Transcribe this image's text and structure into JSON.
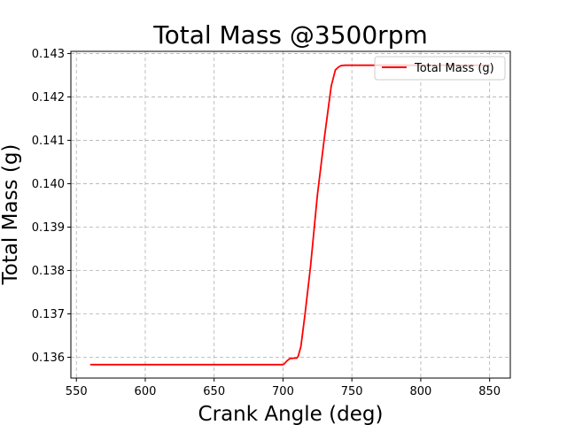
{
  "chart_data": {
    "type": "line",
    "title": "Total Mass @3500rpm",
    "xlabel": "Crank Angle (deg)",
    "ylabel": "Total Mass (g)",
    "xlim": [
      546,
      865
    ],
    "ylim": [
      0.13552,
      0.14305
    ],
    "xticks": [
      550,
      600,
      650,
      700,
      750,
      800,
      850
    ],
    "yticks": [
      0.136,
      0.137,
      0.138,
      0.139,
      0.14,
      0.141,
      0.142,
      0.143
    ],
    "xtick_labels": [
      "550",
      "600",
      "650",
      "700",
      "750",
      "800",
      "850"
    ],
    "ytick_labels": [
      "0.136",
      "0.137",
      "0.138",
      "0.139",
      "0.140",
      "0.141",
      "0.142",
      "0.143"
    ],
    "grid": true,
    "legend_position": "top-right",
    "series": [
      {
        "name": "Total Mass (g)",
        "color": "#ff0000",
        "x": [
          560,
          600,
          650,
          700,
          701,
          703,
          705,
          708,
          710,
          711,
          713,
          716,
          720,
          725,
          730,
          735,
          738,
          740,
          742,
          745,
          750,
          760,
          780,
          850
        ],
        "y": [
          0.13583,
          0.13583,
          0.13583,
          0.13583,
          0.13585,
          0.13592,
          0.13597,
          0.13598,
          0.13598,
          0.13602,
          0.13625,
          0.137,
          0.1381,
          0.13975,
          0.14105,
          0.14225,
          0.14262,
          0.14268,
          0.14272,
          0.14273,
          0.14273,
          0.14273,
          0.14273,
          0.14273
        ]
      }
    ]
  }
}
